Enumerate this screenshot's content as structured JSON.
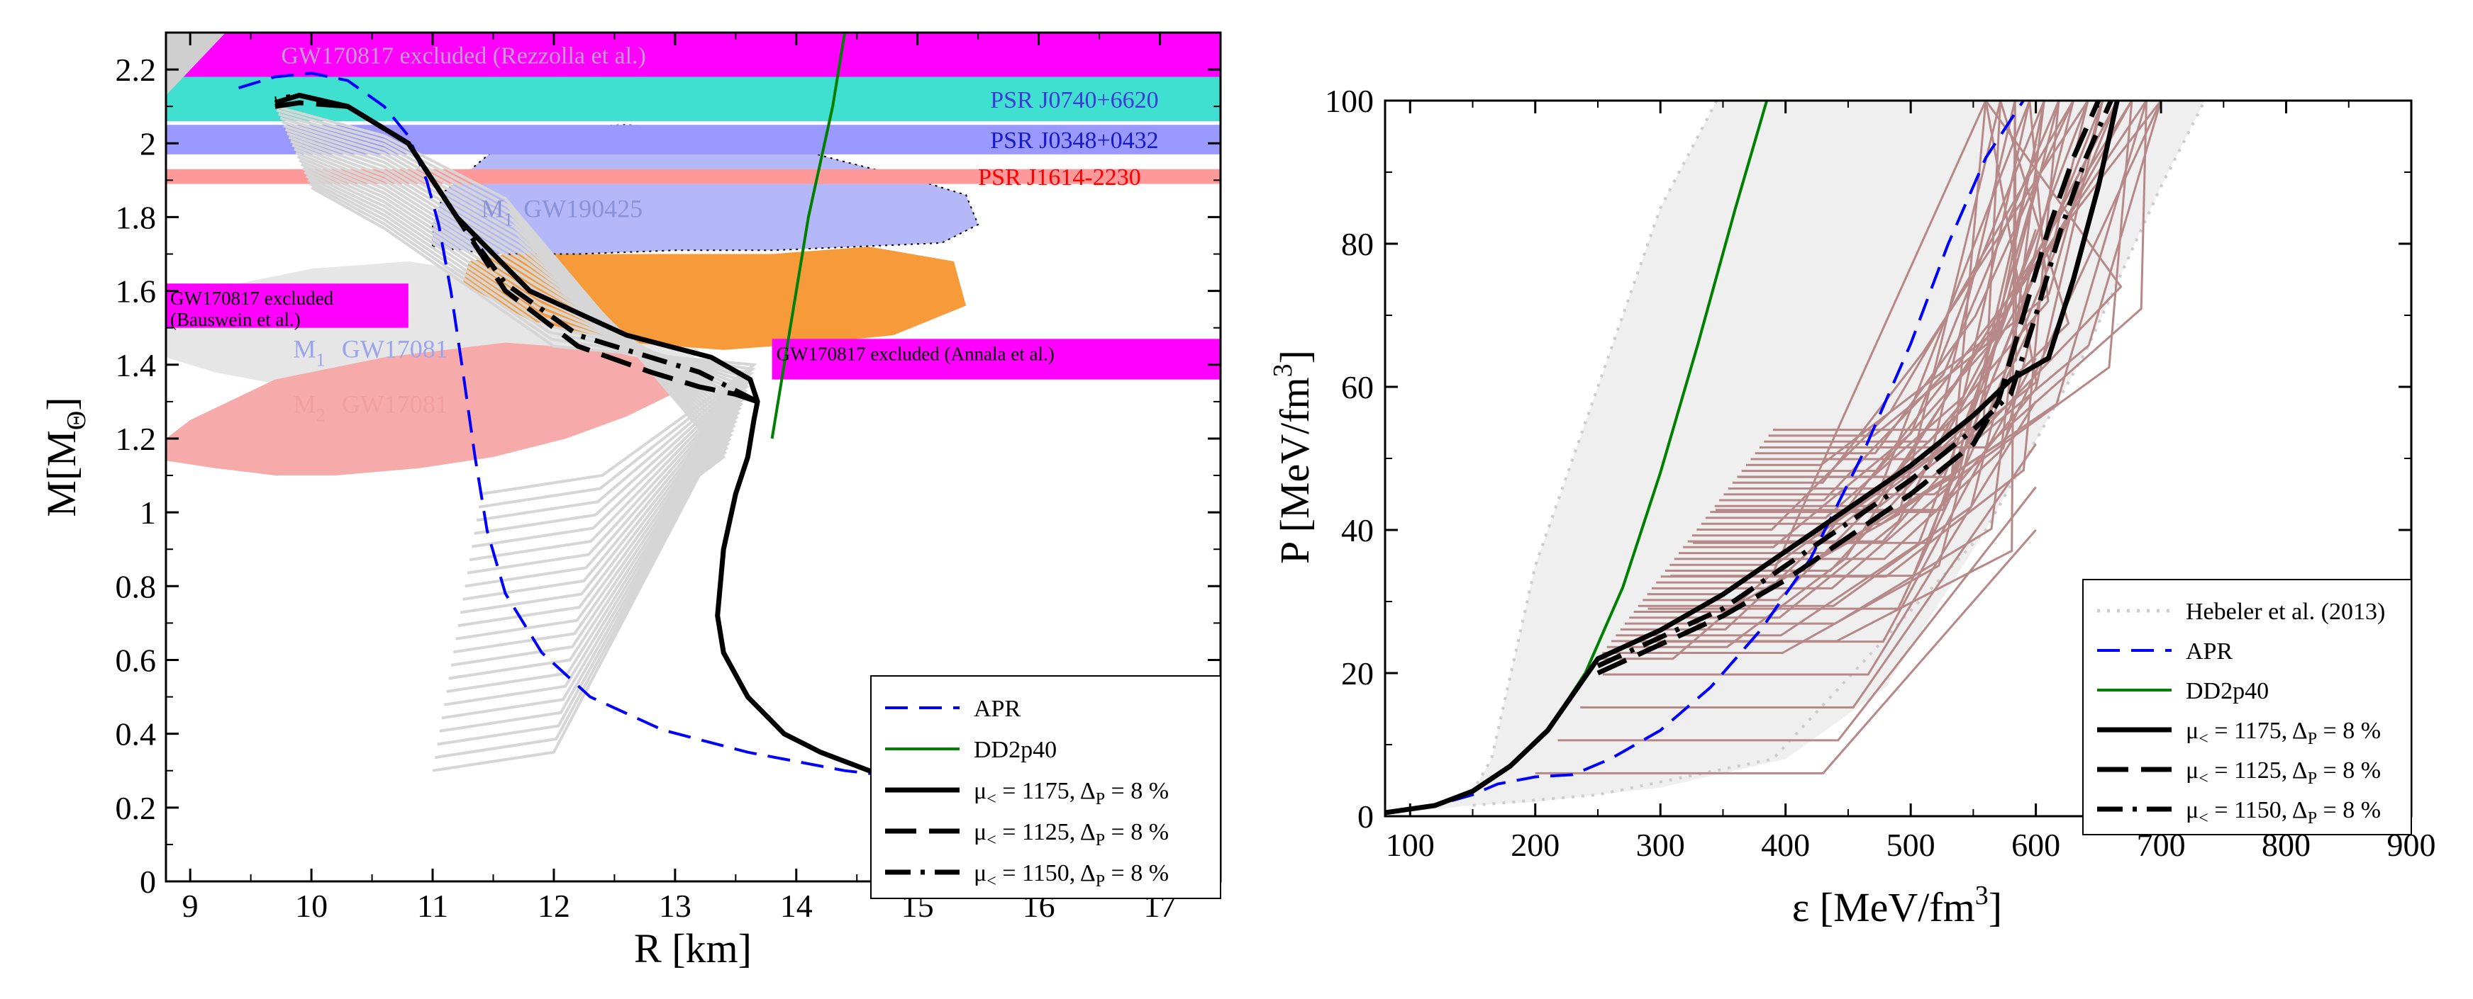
{
  "chart_data": [
    {
      "type": "line",
      "xlabel": "R [km]",
      "ylabel": "M[M",
      "ylabel_sub": "Θ",
      "ylabel_close": "]",
      "xlim": [
        8.8,
        17.5
      ],
      "ylim": [
        0,
        2.3
      ],
      "xticks": [
        "9",
        "10",
        "11",
        "12",
        "13",
        "14",
        "15",
        "16",
        "17"
      ],
      "yticks": [
        "0",
        "0.2",
        "0.4",
        "0.6",
        "0.8",
        "1",
        "1.2",
        "1.4",
        "1.6",
        "1.8",
        "2",
        "2.2"
      ],
      "bands": [
        {
          "label": "GW170817 excluded (Rezzolla et al.)",
          "ymin": 2.16,
          "ymax": 2.32,
          "color": "#ff00ff",
          "text_color": "#c39bd3"
        },
        {
          "label": "PSR J0740+6620",
          "ymin": 2.06,
          "ymax": 2.18,
          "color": "#40e0d0",
          "text_color": "#3b3bd9"
        },
        {
          "label": "PSR J0348+0432",
          "ymin": 1.97,
          "ymax": 2.05,
          "color": "#9999ff",
          "text_color": "#1a1acc"
        },
        {
          "label": "PSR J1614-2230",
          "ymin": 1.89,
          "ymax": 1.93,
          "color": "#ff9999",
          "text_color": "#ff0000"
        }
      ],
      "box_annotations": [
        {
          "label": "GW170817 excluded",
          "label2": "(Bauswein et al.)",
          "xmin": 8.8,
          "xmax": 10.8,
          "ymin": 1.5,
          "ymax": 1.62,
          "color": "#ff00ff"
        },
        {
          "label": "GW170817 excluded (Annala et al.)",
          "xmin": 13.8,
          "xmax": 17.5,
          "ymin": 1.36,
          "ymax": 1.47,
          "color": "#ff00ff"
        }
      ],
      "region_labels": [
        {
          "text": "M",
          "sub": "1",
          "x": 9.85,
          "y": 1.42,
          "color": "#9aa5ee"
        },
        {
          "text": "GW17081",
          "x": 10.25,
          "y": 1.42,
          "color": "#9aa5ee"
        },
        {
          "text": "M",
          "sub": "2",
          "x": 9.85,
          "y": 1.27,
          "color": "#f0a0a0"
        },
        {
          "text": "GW17081",
          "x": 10.25,
          "y": 1.27,
          "color": "#f0a0a0"
        },
        {
          "text": "M",
          "sub": "1",
          "x": 11.4,
          "y": 1.8,
          "color": "#8a92d8"
        },
        {
          "text": "GW190425",
          "x": 11.75,
          "y": 1.8,
          "color": "#8a92d8"
        }
      ],
      "series": [
        {
          "name": "APR",
          "color": "#0000ff",
          "dash": "dashed",
          "x": [
            9.4,
            9.7,
            10.0,
            10.3,
            10.6,
            10.8,
            10.95,
            11.05,
            11.15,
            11.25,
            11.35,
            11.45,
            11.6,
            11.9,
            12.3,
            12.9,
            13.6,
            14.4,
            15.2
          ],
          "y": [
            2.15,
            2.18,
            2.19,
            2.17,
            2.1,
            2.02,
            1.9,
            1.78,
            1.6,
            1.38,
            1.15,
            0.95,
            0.78,
            0.62,
            0.5,
            0.41,
            0.35,
            0.3,
            0.27
          ]
        },
        {
          "name": "DD2p40",
          "color": "#008000",
          "dash": "solid",
          "x": [
            13.8,
            13.9,
            14.0,
            14.1,
            14.2,
            14.3,
            14.35,
            14.4
          ],
          "y": [
            1.2,
            1.4,
            1.6,
            1.8,
            1.95,
            2.1,
            2.2,
            2.3
          ]
        },
        {
          "name": "μ< = 1175, ΔP = 8 %",
          "color": "#000000",
          "dash": "solid",
          "x": [
            15.0,
            14.6,
            14.2,
            13.9,
            13.6,
            13.4,
            13.35,
            13.4,
            13.5,
            13.6,
            13.65,
            13.68,
            13.62,
            13.3,
            12.6,
            11.8,
            11.2,
            10.8,
            10.3,
            9.9,
            9.7
          ],
          "y": [
            0.27,
            0.3,
            0.35,
            0.4,
            0.5,
            0.62,
            0.72,
            0.9,
            1.05,
            1.15,
            1.25,
            1.3,
            1.36,
            1.42,
            1.48,
            1.6,
            1.8,
            2.0,
            2.1,
            2.13,
            2.11
          ]
        },
        {
          "name": "μ< = 1125, ΔP = 8 %",
          "color": "#000000",
          "dash": "longdash",
          "x": [
            13.68,
            13.5,
            13.2,
            12.8,
            12.2,
            11.6,
            11.2,
            10.8,
            10.3,
            9.9,
            9.7
          ],
          "y": [
            1.3,
            1.32,
            1.34,
            1.38,
            1.45,
            1.6,
            1.8,
            2.0,
            2.1,
            2.11,
            2.1
          ]
        },
        {
          "name": "μ< = 1150, ΔP = 8 %",
          "color": "#000000",
          "dash": "dashdot",
          "x": [
            13.68,
            13.5,
            13.2,
            12.8,
            12.2,
            11.6,
            11.2,
            10.8,
            10.3,
            9.9,
            9.7
          ],
          "y": [
            1.3,
            1.33,
            1.38,
            1.42,
            1.48,
            1.62,
            1.8,
            2.0,
            2.1,
            2.13,
            2.12
          ]
        }
      ],
      "legend_placement": "bottom-right"
    },
    {
      "type": "line",
      "xlabel": "ε [MeV/fm",
      "xlabel_sup": "3",
      "xlabel_close": "]",
      "ylabel": "P [MeV/fm",
      "ylabel_sup": "3",
      "ylabel_close": "]",
      "xlim": [
        80,
        900
      ],
      "ylim": [
        0,
        100
      ],
      "xticks": [
        "100",
        "200",
        "300",
        "400",
        "500",
        "600",
        "700",
        "800",
        "900"
      ],
      "yticks": [
        "0",
        "20",
        "40",
        "60",
        "80",
        "100"
      ],
      "series": [
        {
          "name": "Hebeler et al. (2013)",
          "color": "#cccccc",
          "dash": "dotted",
          "x": [
            80,
            120,
            150,
            165,
            200,
            250,
            300,
            345
          ],
          "y": [
            0.5,
            1.5,
            3.5,
            8,
            35,
            60,
            85,
            100
          ]
        },
        {
          "name": "APR",
          "color": "#0000ff",
          "dash": "dashed",
          "x": [
            80,
            120,
            150,
            170,
            200,
            230,
            260,
            300,
            340,
            380,
            420,
            460,
            500,
            530,
            560,
            590
          ],
          "y": [
            0.5,
            1.5,
            3.0,
            4.5,
            5.5,
            5.8,
            8,
            12,
            18,
            26,
            36,
            50,
            66,
            80,
            92,
            100
          ]
        },
        {
          "name": "DD2p40",
          "color": "#008000",
          "dash": "solid",
          "x": [
            80,
            120,
            150,
            180,
            210,
            240,
            270,
            300,
            330,
            360,
            385
          ],
          "y": [
            0.5,
            1.5,
            3.5,
            7,
            12,
            20,
            32,
            48,
            66,
            85,
            100
          ]
        },
        {
          "name": "μ< = 1175, ΔP = 8 %",
          "color": "#000000",
          "dash": "solid",
          "x": [
            80,
            120,
            150,
            180,
            210,
            250,
            300,
            350,
            400,
            450,
            500,
            550,
            580,
            610,
            630,
            650,
            665
          ],
          "y": [
            0.5,
            1.5,
            3.5,
            7,
            12,
            22,
            26,
            31,
            37,
            43,
            49,
            56,
            61,
            64,
            75,
            88,
            100
          ]
        },
        {
          "name": "μ< = 1125, ΔP = 8 %",
          "color": "#000000",
          "dash": "longdash",
          "x": [
            250,
            300,
            350,
            400,
            450,
            500,
            550,
            570,
            590,
            610,
            630,
            650
          ],
          "y": [
            20,
            24,
            28,
            33,
            39,
            45,
            52,
            58,
            70,
            82,
            92,
            100
          ]
        },
        {
          "name": "μ< = 1150, ΔP = 8 %",
          "color": "#000000",
          "dash": "dashdot",
          "x": [
            250,
            300,
            350,
            400,
            450,
            500,
            550,
            580,
            600,
            620,
            640,
            660
          ],
          "y": [
            21,
            25,
            29,
            35,
            41,
            47,
            54,
            59,
            70,
            82,
            92,
            100
          ]
        }
      ],
      "legend_placement": "bottom-right"
    }
  ]
}
